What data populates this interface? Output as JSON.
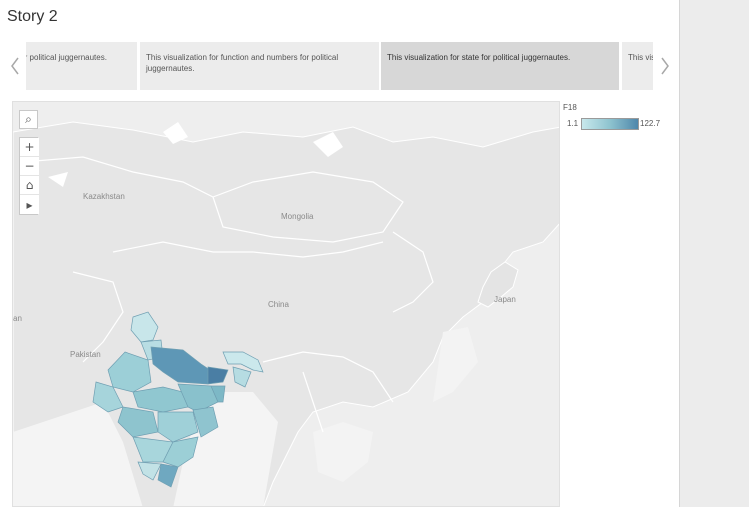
{
  "story": {
    "title": "Story 2"
  },
  "navigator": {
    "points": [
      {
        "text": "for political juggernautes.",
        "active": false
      },
      {
        "text": "This visualization for  function and numbers for political juggernautes.",
        "active": false
      },
      {
        "text": "This visualization for state for political juggernautes.",
        "active": true
      },
      {
        "text": "This visualization",
        "active": false
      }
    ]
  },
  "map": {
    "labels": {
      "kazakhstan": "Kazakhstan",
      "mongolia": "Mongolia",
      "china": "China",
      "japan": "Japan",
      "pakistan": "Pakistan",
      "left_edge": "an"
    },
    "tools": {
      "search_icon": "⌕",
      "zoom_in": "+",
      "zoom_out": "−",
      "home": "⌂",
      "play": "▸"
    }
  },
  "legend": {
    "field": "F18",
    "min": "1.1",
    "max": "122.7",
    "colors": {
      "low": "#c8e8ec",
      "mid": "#8ec3cf",
      "high": "#4f87ab"
    }
  }
}
